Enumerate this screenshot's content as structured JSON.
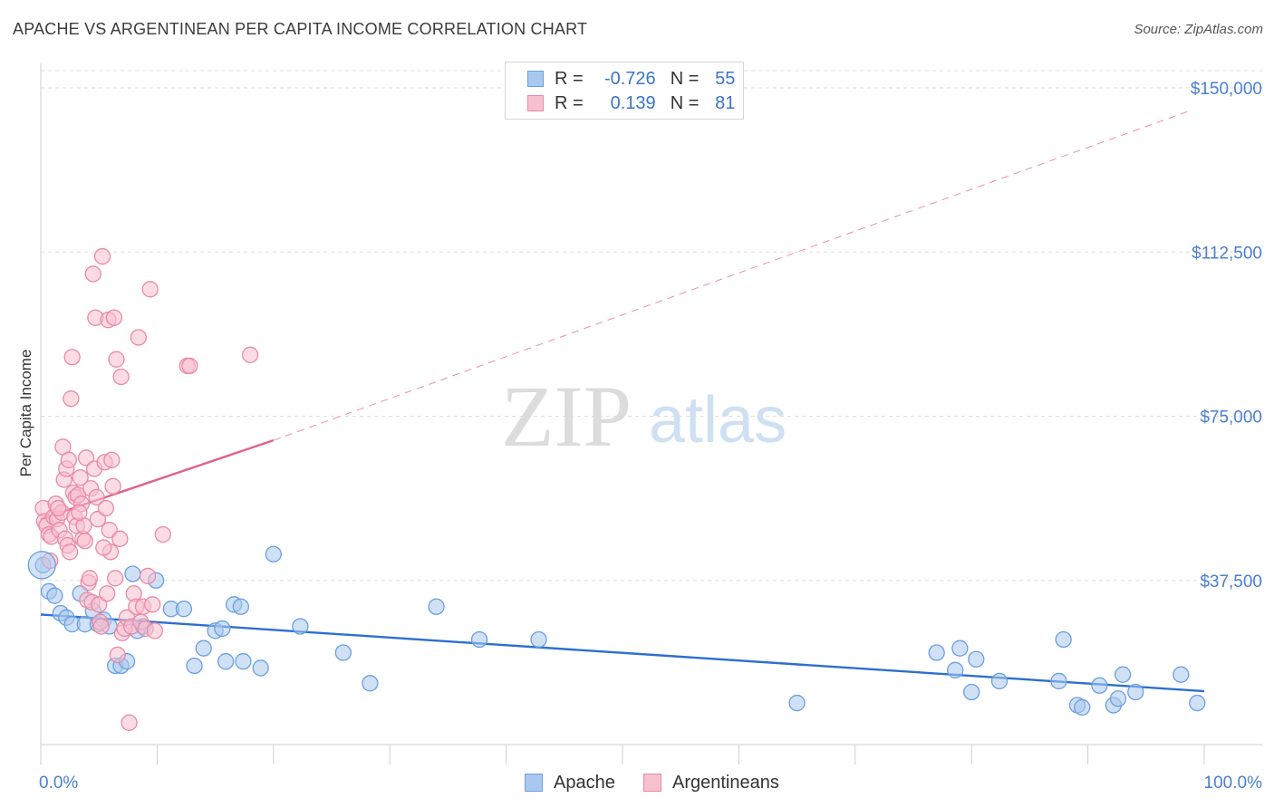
{
  "title": "APACHE VS ARGENTINEAN PER CAPITA INCOME CORRELATION CHART",
  "source": "Source: ZipAtlas.com",
  "watermark": {
    "zip": "ZIP",
    "atlas": "atlas"
  },
  "legend": {
    "rows": [
      {
        "r_label": "R =",
        "r_value": "-0.726",
        "n_label": "N =",
        "n_value": "55",
        "color": "#a9c8ef",
        "border": "#6a9fe0"
      },
      {
        "r_label": "R =",
        "r_value": "0.139",
        "n_label": "N =",
        "n_value": "81",
        "color": "#f7c0cf",
        "border": "#e98aa5"
      }
    ]
  },
  "bottom_legend": [
    {
      "label": "Apache",
      "color": "#a9c8ef",
      "border": "#6a9fe0"
    },
    {
      "label": "Argentineans",
      "color": "#f7c0cf",
      "border": "#e98aa5"
    }
  ],
  "chart_data": {
    "type": "scatter",
    "title": "APACHE VS ARGENTINEAN PER CAPITA INCOME CORRELATION CHART",
    "xlabel": "",
    "ylabel": "Per Capita Income",
    "xlim": [
      0,
      100
    ],
    "ylim": [
      0,
      155000
    ],
    "x_tick_labels": [
      "0.0%",
      "100.0%"
    ],
    "y_ticks": [
      37500,
      75000,
      112500,
      150000
    ],
    "y_tick_labels": [
      "$37,500",
      "$75,000",
      "$112,500",
      "$150,000"
    ],
    "grid": true,
    "series": [
      {
        "name": "Apache",
        "color": "#6a9fe0",
        "fill": "#a9c8ef",
        "trend": {
          "x": [
            0,
            100
          ],
          "y": [
            29700,
            12200
          ],
          "color": "#2c6fd0"
        },
        "points": [
          [
            0.2,
            41000
          ],
          [
            0.7,
            35000
          ],
          [
            1.2,
            34000
          ],
          [
            1.7,
            30000
          ],
          [
            2.2,
            29000
          ],
          [
            2.7,
            27500
          ],
          [
            3.4,
            34500
          ],
          [
            3.8,
            27500
          ],
          [
            4.5,
            30500
          ],
          [
            4.9,
            27500
          ],
          [
            5.4,
            28500
          ],
          [
            5.9,
            27000
          ],
          [
            6.4,
            18000
          ],
          [
            6.9,
            18000
          ],
          [
            7.4,
            19000
          ],
          [
            7.9,
            39000
          ],
          [
            8.3,
            26000
          ],
          [
            8.8,
            27000
          ],
          [
            9.9,
            37500
          ],
          [
            11.2,
            31000
          ],
          [
            12.3,
            31000
          ],
          [
            13.2,
            18000
          ],
          [
            14.0,
            22000
          ],
          [
            15.0,
            26000
          ],
          [
            15.6,
            26500
          ],
          [
            15.9,
            19000
          ],
          [
            16.6,
            32000
          ],
          [
            17.2,
            31500
          ],
          [
            17.4,
            19000
          ],
          [
            18.9,
            17500
          ],
          [
            20.0,
            43500
          ],
          [
            22.3,
            27000
          ],
          [
            26.0,
            21000
          ],
          [
            28.3,
            14000
          ],
          [
            34.0,
            31500
          ],
          [
            37.7,
            24000
          ],
          [
            42.8,
            24000
          ],
          [
            65.0,
            9500
          ],
          [
            77.0,
            21000
          ],
          [
            78.6,
            17000
          ],
          [
            79.0,
            22000
          ],
          [
            80.0,
            12000
          ],
          [
            80.4,
            19500
          ],
          [
            82.4,
            14500
          ],
          [
            87.5,
            14500
          ],
          [
            87.9,
            24000
          ],
          [
            89.1,
            9000
          ],
          [
            89.5,
            8500
          ],
          [
            91.0,
            13500
          ],
          [
            92.2,
            9000
          ],
          [
            92.6,
            10500
          ],
          [
            93.0,
            16000
          ],
          [
            94.1,
            12000
          ],
          [
            98.0,
            16000
          ],
          [
            99.4,
            9500
          ]
        ]
      },
      {
        "name": "Argentineans",
        "color": "#e98aa5",
        "fill": "#f7c0cf",
        "trend": {
          "x": [
            0,
            20
          ],
          "y": [
            51500,
            69500
          ],
          "color": "#e0628a",
          "dashed_extension": {
            "x": [
              20,
              99
            ],
            "y": [
              69500,
              145000
            ]
          }
        },
        "points": [
          [
            0.2,
            54000
          ],
          [
            0.3,
            51000
          ],
          [
            0.5,
            50000
          ],
          [
            0.7,
            48000
          ],
          [
            0.9,
            47500
          ],
          [
            1.1,
            52000
          ],
          [
            1.3,
            55000
          ],
          [
            1.4,
            51500
          ],
          [
            1.6,
            49000
          ],
          [
            1.8,
            53000
          ],
          [
            1.9,
            68000
          ],
          [
            2.0,
            60500
          ],
          [
            2.1,
            47000
          ],
          [
            2.2,
            63000
          ],
          [
            2.3,
            45500
          ],
          [
            2.4,
            65000
          ],
          [
            2.6,
            79000
          ],
          [
            2.7,
            88500
          ],
          [
            2.8,
            57500
          ],
          [
            2.9,
            52000
          ],
          [
            3.0,
            56500
          ],
          [
            3.1,
            50000
          ],
          [
            3.2,
            57000
          ],
          [
            3.4,
            61000
          ],
          [
            3.5,
            55000
          ],
          [
            3.6,
            47000
          ],
          [
            3.7,
            50000
          ],
          [
            3.8,
            46500
          ],
          [
            3.9,
            65500
          ],
          [
            4.0,
            33000
          ],
          [
            4.1,
            37000
          ],
          [
            4.3,
            58500
          ],
          [
            4.4,
            32500
          ],
          [
            4.5,
            107500
          ],
          [
            4.6,
            63000
          ],
          [
            4.7,
            97500
          ],
          [
            4.8,
            56500
          ],
          [
            4.9,
            51500
          ],
          [
            5.0,
            32000
          ],
          [
            5.1,
            28000
          ],
          [
            5.2,
            27000
          ],
          [
            5.3,
            111500
          ],
          [
            5.5,
            64500
          ],
          [
            5.6,
            54000
          ],
          [
            5.7,
            34500
          ],
          [
            5.8,
            97000
          ],
          [
            5.9,
            49000
          ],
          [
            6.0,
            44000
          ],
          [
            6.1,
            65000
          ],
          [
            6.2,
            59000
          ],
          [
            6.3,
            97500
          ],
          [
            6.4,
            38000
          ],
          [
            6.5,
            88000
          ],
          [
            6.6,
            20500
          ],
          [
            6.8,
            47000
          ],
          [
            6.9,
            84000
          ],
          [
            7.0,
            25500
          ],
          [
            7.2,
            26500
          ],
          [
            7.4,
            29000
          ],
          [
            7.6,
            5000
          ],
          [
            7.8,
            27000
          ],
          [
            8.0,
            34500
          ],
          [
            8.2,
            31500
          ],
          [
            8.4,
            93000
          ],
          [
            8.6,
            28000
          ],
          [
            8.8,
            31500
          ],
          [
            9.0,
            26500
          ],
          [
            9.2,
            38500
          ],
          [
            9.4,
            104000
          ],
          [
            9.6,
            32000
          ],
          [
            9.8,
            26000
          ],
          [
            10.5,
            48000
          ],
          [
            12.6,
            86500
          ],
          [
            12.8,
            86500
          ],
          [
            18.0,
            89000
          ],
          [
            0.8,
            42000
          ],
          [
            1.5,
            54000
          ],
          [
            2.5,
            44000
          ],
          [
            3.3,
            53000
          ],
          [
            4.2,
            38000
          ],
          [
            5.4,
            45000
          ]
        ]
      }
    ]
  }
}
